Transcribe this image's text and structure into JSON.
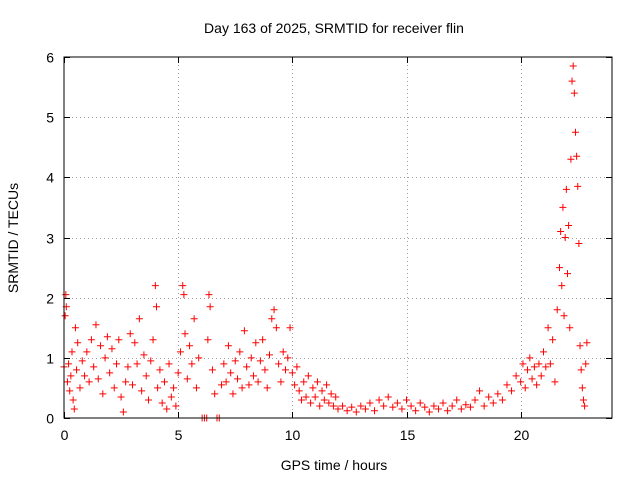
{
  "chart_data": {
    "type": "scatter",
    "title": "Day 163 of 2025, SRMTID for receiver flin",
    "xlabel": "GPS time / hours",
    "ylabel": "SRMTID / TECUs",
    "xlim": [
      0,
      24
    ],
    "ylim": [
      0,
      6
    ],
    "xticks": [
      0,
      5,
      10,
      15,
      20
    ],
    "yticks": [
      0,
      1,
      2,
      3,
      4,
      5,
      6
    ],
    "xtick_labels": [
      "0",
      "5",
      "10",
      "15",
      "20"
    ],
    "ytick_labels": [
      "0",
      "1",
      "2",
      "3",
      "4",
      "5",
      "6"
    ],
    "grid": true,
    "marker": "+",
    "color": "#ff0000",
    "series": [
      {
        "name": "flin",
        "points": [
          [
            0.0,
            0.85
          ],
          [
            0.05,
            1.7
          ],
          [
            0.08,
            2.05
          ],
          [
            0.1,
            1.85
          ],
          [
            0.15,
            0.6
          ],
          [
            0.2,
            0.9
          ],
          [
            0.25,
            0.45
          ],
          [
            0.3,
            0.7
          ],
          [
            0.35,
            1.1
          ],
          [
            0.4,
            0.3
          ],
          [
            0.45,
            0.15
          ],
          [
            0.5,
            1.5
          ],
          [
            0.55,
            0.8
          ],
          [
            0.6,
            1.25
          ],
          [
            0.7,
            0.5
          ],
          [
            0.8,
            0.95
          ],
          [
            0.9,
            0.7
          ],
          [
            1.0,
            1.1
          ],
          [
            1.1,
            0.6
          ],
          [
            1.2,
            1.3
          ],
          [
            1.3,
            0.85
          ],
          [
            1.4,
            1.55
          ],
          [
            1.5,
            0.65
          ],
          [
            1.6,
            1.2
          ],
          [
            1.7,
            0.4
          ],
          [
            1.8,
            1.0
          ],
          [
            1.9,
            1.35
          ],
          [
            2.0,
            0.75
          ],
          [
            2.1,
            1.15
          ],
          [
            2.2,
            0.5
          ],
          [
            2.3,
            0.9
          ],
          [
            2.4,
            1.3
          ],
          [
            2.5,
            0.35
          ],
          [
            2.6,
            0.1
          ],
          [
            2.7,
            0.6
          ],
          [
            2.8,
            0.85
          ],
          [
            2.9,
            1.4
          ],
          [
            3.0,
            0.55
          ],
          [
            3.1,
            1.25
          ],
          [
            3.2,
            0.9
          ],
          [
            3.3,
            1.65
          ],
          [
            3.4,
            0.45
          ],
          [
            3.5,
            1.05
          ],
          [
            3.6,
            0.7
          ],
          [
            3.7,
            0.3
          ],
          [
            3.8,
            0.95
          ],
          [
            3.9,
            1.3
          ],
          [
            4.0,
            2.2
          ],
          [
            4.05,
            1.85
          ],
          [
            4.1,
            0.5
          ],
          [
            4.2,
            0.8
          ],
          [
            4.3,
            0.25
          ],
          [
            4.4,
            0.6
          ],
          [
            4.5,
            0.15
          ],
          [
            4.6,
            0.9
          ],
          [
            4.7,
            0.35
          ],
          [
            4.8,
            0.5
          ],
          [
            4.9,
            0.2
          ],
          [
            5.0,
            0.75
          ],
          [
            5.1,
            1.1
          ],
          [
            5.2,
            2.2
          ],
          [
            5.25,
            2.05
          ],
          [
            5.3,
            1.4
          ],
          [
            5.4,
            0.65
          ],
          [
            5.5,
            1.2
          ],
          [
            5.6,
            0.9
          ],
          [
            5.7,
            1.65
          ],
          [
            5.8,
            0.5
          ],
          [
            5.9,
            1.0
          ],
          [
            6.05,
            0.0
          ],
          [
            6.15,
            0.0
          ],
          [
            6.25,
            0.0
          ],
          [
            6.3,
            1.3
          ],
          [
            6.35,
            2.05
          ],
          [
            6.4,
            1.85
          ],
          [
            6.5,
            0.8
          ],
          [
            6.6,
            0.4
          ],
          [
            6.7,
            0.0
          ],
          [
            6.8,
            0.0
          ],
          [
            6.9,
            0.55
          ],
          [
            7.0,
            0.9
          ],
          [
            7.1,
            0.6
          ],
          [
            7.2,
            1.2
          ],
          [
            7.3,
            0.75
          ],
          [
            7.4,
            0.4
          ],
          [
            7.5,
            0.95
          ],
          [
            7.6,
            0.65
          ],
          [
            7.7,
            1.1
          ],
          [
            7.8,
            0.5
          ],
          [
            7.9,
            1.45
          ],
          [
            8.0,
            0.85
          ],
          [
            8.1,
            0.55
          ],
          [
            8.2,
            1.0
          ],
          [
            8.3,
            0.7
          ],
          [
            8.4,
            1.25
          ],
          [
            8.5,
            0.6
          ],
          [
            8.6,
            0.95
          ],
          [
            8.7,
            1.3
          ],
          [
            8.8,
            0.8
          ],
          [
            8.9,
            0.5
          ],
          [
            9.0,
            1.05
          ],
          [
            9.1,
            1.65
          ],
          [
            9.2,
            1.8
          ],
          [
            9.3,
            1.5
          ],
          [
            9.4,
            0.9
          ],
          [
            9.5,
            0.6
          ],
          [
            9.6,
            1.1
          ],
          [
            9.7,
            0.8
          ],
          [
            9.8,
            1.0
          ],
          [
            9.9,
            1.5
          ],
          [
            10.0,
            0.75
          ],
          [
            10.1,
            0.55
          ],
          [
            10.2,
            0.85
          ],
          [
            10.3,
            0.45
          ],
          [
            10.4,
            0.3
          ],
          [
            10.5,
            0.6
          ],
          [
            10.6,
            0.35
          ],
          [
            10.7,
            0.7
          ],
          [
            10.8,
            0.25
          ],
          [
            10.9,
            0.5
          ],
          [
            11.0,
            0.35
          ],
          [
            11.1,
            0.6
          ],
          [
            11.2,
            0.2
          ],
          [
            11.3,
            0.45
          ],
          [
            11.4,
            0.3
          ],
          [
            11.5,
            0.55
          ],
          [
            11.6,
            0.25
          ],
          [
            11.7,
            0.4
          ],
          [
            11.8,
            0.2
          ],
          [
            11.9,
            0.35
          ],
          [
            12.0,
            0.15
          ],
          [
            12.2,
            0.2
          ],
          [
            12.4,
            0.12
          ],
          [
            12.6,
            0.18
          ],
          [
            12.8,
            0.1
          ],
          [
            13.0,
            0.2
          ],
          [
            13.2,
            0.15
          ],
          [
            13.4,
            0.25
          ],
          [
            13.6,
            0.12
          ],
          [
            13.8,
            0.3
          ],
          [
            14.0,
            0.2
          ],
          [
            14.2,
            0.35
          ],
          [
            14.4,
            0.18
          ],
          [
            14.6,
            0.25
          ],
          [
            14.8,
            0.15
          ],
          [
            15.0,
            0.3
          ],
          [
            15.2,
            0.2
          ],
          [
            15.4,
            0.12
          ],
          [
            15.6,
            0.25
          ],
          [
            15.8,
            0.18
          ],
          [
            16.0,
            0.1
          ],
          [
            16.2,
            0.2
          ],
          [
            16.4,
            0.15
          ],
          [
            16.6,
            0.25
          ],
          [
            16.8,
            0.12
          ],
          [
            17.0,
            0.2
          ],
          [
            17.2,
            0.3
          ],
          [
            17.4,
            0.15
          ],
          [
            17.6,
            0.22
          ],
          [
            17.8,
            0.18
          ],
          [
            18.0,
            0.3
          ],
          [
            18.2,
            0.45
          ],
          [
            18.4,
            0.2
          ],
          [
            18.6,
            0.35
          ],
          [
            18.8,
            0.25
          ],
          [
            19.0,
            0.4
          ],
          [
            19.2,
            0.3
          ],
          [
            19.4,
            0.55
          ],
          [
            19.6,
            0.45
          ],
          [
            19.8,
            0.7
          ],
          [
            20.0,
            0.6
          ],
          [
            20.1,
            0.9
          ],
          [
            20.2,
            0.5
          ],
          [
            20.3,
            0.8
          ],
          [
            20.4,
            1.0
          ],
          [
            20.5,
            0.65
          ],
          [
            20.6,
            0.85
          ],
          [
            20.7,
            0.55
          ],
          [
            20.8,
            0.9
          ],
          [
            20.9,
            0.7
          ],
          [
            21.0,
            1.1
          ],
          [
            21.1,
            0.85
          ],
          [
            21.2,
            1.5
          ],
          [
            21.3,
            0.9
          ],
          [
            21.4,
            1.3
          ],
          [
            21.5,
            0.6
          ],
          [
            21.6,
            1.8
          ],
          [
            21.7,
            2.5
          ],
          [
            21.75,
            3.1
          ],
          [
            21.8,
            2.2
          ],
          [
            21.85,
            3.5
          ],
          [
            21.9,
            1.7
          ],
          [
            21.95,
            3.0
          ],
          [
            22.0,
            3.8
          ],
          [
            22.05,
            2.4
          ],
          [
            22.1,
            3.2
          ],
          [
            22.15,
            1.5
          ],
          [
            22.2,
            4.3
          ],
          [
            22.25,
            5.6
          ],
          [
            22.3,
            5.85
          ],
          [
            22.35,
            5.4
          ],
          [
            22.4,
            4.75
          ],
          [
            22.45,
            4.35
          ],
          [
            22.5,
            3.85
          ],
          [
            22.55,
            2.9
          ],
          [
            22.6,
            1.2
          ],
          [
            22.65,
            0.8
          ],
          [
            22.7,
            0.5
          ],
          [
            22.75,
            0.3
          ],
          [
            22.8,
            0.2
          ],
          [
            22.85,
            0.9
          ],
          [
            22.9,
            1.25
          ]
        ]
      }
    ]
  }
}
